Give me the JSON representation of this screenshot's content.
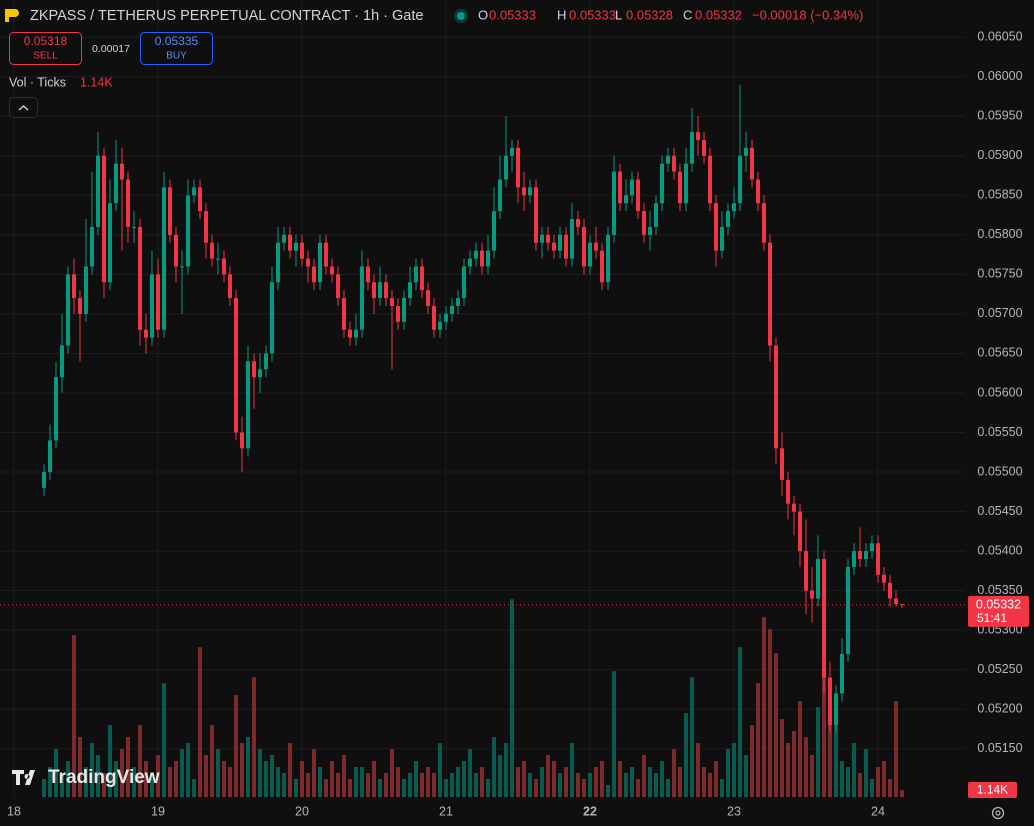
{
  "header": {
    "symbol": "ZKPASS / TETHERUS PERPETUAL CONTRACT · 1h · Gate",
    "ohlc": [
      {
        "label": "O",
        "value": "0.05333"
      },
      {
        "label": "H",
        "value": "0.05333"
      },
      {
        "label": "L",
        "value": "0.05328"
      },
      {
        "label": "C",
        "value": "0.05332"
      }
    ],
    "change": "−0.00018 (−0.34%)",
    "sell_price": "0.05318",
    "sell_label": "SELL",
    "spread": "0.00017",
    "buy_price": "0.05335",
    "buy_label": "BUY",
    "countdown": "51:41",
    "watermark": "TradingView"
  },
  "chart_data": {
    "type": "candlestick",
    "up_color": "#089981",
    "down_color": "#f23645",
    "volume_up_color": "#0b5a50",
    "volume_down_color": "#7d2a2c",
    "grid": true,
    "volume_name": "Vol · Ticks",
    "volume_last_label": "1.14K",
    "x": [
      5,
      6,
      7,
      8,
      9,
      10,
      11,
      12,
      13,
      14,
      15,
      16,
      17,
      18,
      19,
      20,
      21,
      22,
      23,
      24,
      25,
      26,
      27,
      28,
      29,
      30,
      31,
      32,
      33,
      34,
      35,
      36,
      37,
      38,
      39,
      40,
      41,
      42,
      43,
      44,
      45,
      46,
      47,
      48,
      49,
      50,
      51,
      52,
      53,
      54,
      55,
      56,
      57,
      58,
      59,
      60,
      61,
      62,
      63,
      64,
      65,
      66,
      67,
      68,
      69,
      70,
      71,
      72,
      73,
      74,
      75,
      76,
      77,
      78,
      79,
      80,
      81,
      82,
      83,
      84,
      85,
      86,
      87,
      88,
      89,
      90,
      91,
      92,
      93,
      94,
      95,
      96,
      97,
      98,
      99,
      100,
      101,
      102,
      103,
      104,
      105,
      106,
      107,
      108,
      109,
      110,
      111,
      112,
      113,
      114,
      115,
      116,
      117,
      118,
      119,
      120,
      121,
      122,
      123,
      124,
      125,
      126,
      127,
      128,
      129,
      130,
      131,
      132,
      133,
      134,
      135,
      136,
      137,
      138,
      139,
      140,
      141,
      142,
      143,
      144,
      145,
      146,
      147,
      148
    ],
    "open": [
      0.0548,
      0.055,
      0.0554,
      0.0562,
      0.0566,
      0.0575,
      0.0572,
      0.057,
      0.0576,
      0.0581,
      0.059,
      0.0574,
      0.0584,
      0.0589,
      0.0587,
      0.0581,
      0.0581,
      0.0568,
      0.0567,
      0.0575,
      0.0568,
      0.0586,
      0.058,
      0.0576,
      0.0576,
      0.0585,
      0.0586,
      0.0583,
      0.0579,
      0.0577,
      0.0577,
      0.0575,
      0.0572,
      0.0555,
      0.0553,
      0.0564,
      0.0562,
      0.0563,
      0.0565,
      0.0574,
      0.0579,
      0.058,
      0.0578,
      0.0579,
      0.0577,
      0.0576,
      0.0574,
      0.0579,
      0.0576,
      0.0575,
      0.0572,
      0.0568,
      0.0567,
      0.0568,
      0.0576,
      0.0574,
      0.0572,
      0.0574,
      0.0572,
      0.0571,
      0.0569,
      0.0572,
      0.0574,
      0.0576,
      0.0573,
      0.0571,
      0.0568,
      0.0569,
      0.057,
      0.0571,
      0.0572,
      0.0576,
      0.0577,
      0.0578,
      0.0576,
      0.0578,
      0.0583,
      0.0587,
      0.059,
      0.0591,
      0.0586,
      0.0585,
      0.0586,
      0.0579,
      0.058,
      0.0579,
      0.0578,
      0.058,
      0.0577,
      0.0582,
      0.0581,
      0.0576,
      0.0579,
      0.0578,
      0.0574,
      0.058,
      0.0588,
      0.0584,
      0.0585,
      0.0587,
      0.0583,
      0.058,
      0.0581,
      0.0584,
      0.0589,
      0.059,
      0.0588,
      0.0584,
      0.0589,
      0.0593,
      0.0592,
      0.059,
      0.0584,
      0.0578,
      0.0581,
      0.0583,
      0.0584,
      0.059,
      0.0591,
      0.0587,
      0.0584,
      0.0579,
      0.0566,
      0.0553,
      0.0549,
      0.0546,
      0.0545,
      0.054,
      0.0535,
      0.0534,
      0.0539,
      0.0524,
      0.0518,
      0.0522,
      0.0527,
      0.0538,
      0.054,
      0.0539,
      0.054,
      0.0541,
      0.0537,
      0.0536,
      0.0534,
      0.05333
    ],
    "high": [
      0.0551,
      0.0556,
      0.0564,
      0.057,
      0.0576,
      0.0577,
      0.0573,
      0.0582,
      0.0588,
      0.0593,
      0.0591,
      0.0587,
      0.0592,
      0.0591,
      0.0588,
      0.0583,
      0.0582,
      0.057,
      0.0578,
      0.0577,
      0.0588,
      0.0587,
      0.0581,
      0.0578,
      0.0587,
      0.0587,
      0.0587,
      0.0584,
      0.058,
      0.0579,
      0.0578,
      0.0576,
      0.0573,
      0.0557,
      0.0566,
      0.0565,
      0.0565,
      0.0566,
      0.0576,
      0.0581,
      0.0581,
      0.0581,
      0.058,
      0.058,
      0.0578,
      0.0577,
      0.058,
      0.058,
      0.0577,
      0.0576,
      0.0573,
      0.0569,
      0.057,
      0.0578,
      0.0577,
      0.0575,
      0.0576,
      0.0575,
      0.0573,
      0.0572,
      0.0573,
      0.0576,
      0.0577,
      0.0577,
      0.0574,
      0.0572,
      0.057,
      0.0571,
      0.0572,
      0.0573,
      0.0577,
      0.0578,
      0.0579,
      0.0579,
      0.058,
      0.0586,
      0.059,
      0.0595,
      0.0592,
      0.0592,
      0.0588,
      0.0587,
      0.0587,
      0.0581,
      0.0581,
      0.058,
      0.0581,
      0.0581,
      0.0584,
      0.0583,
      0.0582,
      0.058,
      0.0581,
      0.0579,
      0.0581,
      0.059,
      0.0589,
      0.0587,
      0.0588,
      0.0588,
      0.0584,
      0.0583,
      0.0585,
      0.059,
      0.0591,
      0.0591,
      0.0589,
      0.0591,
      0.0596,
      0.0595,
      0.0593,
      0.0591,
      0.0585,
      0.0583,
      0.0584,
      0.0586,
      0.0599,
      0.0593,
      0.0592,
      0.0588,
      0.0585,
      0.058,
      0.0567,
      0.0555,
      0.055,
      0.0547,
      0.0546,
      0.0544,
      0.0538,
      0.0542,
      0.054,
      0.0526,
      0.0523,
      0.0529,
      0.0539,
      0.0541,
      0.0543,
      0.0541,
      0.0542,
      0.0542,
      0.0538,
      0.0537,
      0.0535,
      0.05333
    ],
    "low": [
      0.0547,
      0.0549,
      0.0553,
      0.056,
      0.0565,
      0.057,
      0.0564,
      0.0569,
      0.0575,
      0.058,
      0.0572,
      0.0573,
      0.0583,
      0.0578,
      0.0579,
      0.0579,
      0.0566,
      0.0565,
      0.0566,
      0.0567,
      0.0567,
      0.0579,
      0.0574,
      0.057,
      0.0575,
      0.0584,
      0.0582,
      0.0577,
      0.0576,
      0.0575,
      0.0574,
      0.0571,
      0.0554,
      0.055,
      0.0552,
      0.0558,
      0.056,
      0.0562,
      0.0564,
      0.0573,
      0.0578,
      0.0577,
      0.0576,
      0.0576,
      0.0574,
      0.0573,
      0.0573,
      0.0575,
      0.0574,
      0.0571,
      0.0567,
      0.0566,
      0.0566,
      0.0567,
      0.0573,
      0.057,
      0.0571,
      0.0571,
      0.0563,
      0.0568,
      0.0568,
      0.0571,
      0.0573,
      0.0572,
      0.057,
      0.0567,
      0.0567,
      0.0568,
      0.0569,
      0.057,
      0.0571,
      0.0575,
      0.0576,
      0.0575,
      0.0575,
      0.0577,
      0.0582,
      0.0586,
      0.0588,
      0.0584,
      0.0583,
      0.0584,
      0.0578,
      0.0577,
      0.0578,
      0.0577,
      0.0577,
      0.0576,
      0.0576,
      0.058,
      0.0575,
      0.0575,
      0.0577,
      0.0573,
      0.0573,
      0.0579,
      0.0583,
      0.0583,
      0.0584,
      0.0582,
      0.0579,
      0.0578,
      0.058,
      0.0583,
      0.0588,
      0.0587,
      0.0583,
      0.0583,
      0.0588,
      0.059,
      0.0589,
      0.0583,
      0.0576,
      0.0577,
      0.058,
      0.0582,
      0.0583,
      0.0588,
      0.0586,
      0.0583,
      0.0578,
      0.0564,
      0.0551,
      0.0547,
      0.0544,
      0.0542,
      0.0538,
      0.0532,
      0.0531,
      0.0533,
      0.0522,
      0.0517,
      0.0517,
      0.0521,
      0.0526,
      0.0537,
      0.0538,
      0.0538,
      0.0539,
      0.0536,
      0.0535,
      0.0533,
      0.0533,
      0.05328
    ],
    "close": [
      0.055,
      0.0554,
      0.0562,
      0.0566,
      0.0575,
      0.0572,
      0.057,
      0.0576,
      0.0581,
      0.059,
      0.0574,
      0.0584,
      0.0589,
      0.0587,
      0.0581,
      0.0581,
      0.0568,
      0.0567,
      0.0575,
      0.0568,
      0.0586,
      0.058,
      0.0576,
      0.0576,
      0.0585,
      0.0586,
      0.0583,
      0.0579,
      0.0577,
      0.0577,
      0.0575,
      0.0572,
      0.0555,
      0.0553,
      0.0564,
      0.0562,
      0.0563,
      0.0565,
      0.0574,
      0.0579,
      0.058,
      0.0578,
      0.0579,
      0.0577,
      0.0576,
      0.0574,
      0.0579,
      0.0576,
      0.0575,
      0.0572,
      0.0568,
      0.0567,
      0.0568,
      0.0576,
      0.0574,
      0.0572,
      0.0574,
      0.0572,
      0.0571,
      0.0569,
      0.0572,
      0.0574,
      0.0576,
      0.0573,
      0.0571,
      0.0568,
      0.0569,
      0.057,
      0.0571,
      0.0572,
      0.0576,
      0.0577,
      0.0578,
      0.0576,
      0.0578,
      0.0583,
      0.0587,
      0.059,
      0.0591,
      0.0586,
      0.0585,
      0.0586,
      0.0579,
      0.058,
      0.0579,
      0.0578,
      0.058,
      0.0577,
      0.0582,
      0.0581,
      0.0576,
      0.0579,
      0.0578,
      0.0574,
      0.058,
      0.0588,
      0.0584,
      0.0585,
      0.0587,
      0.0583,
      0.058,
      0.0581,
      0.0584,
      0.0589,
      0.059,
      0.0588,
      0.0584,
      0.0589,
      0.0593,
      0.0592,
      0.059,
      0.0584,
      0.0578,
      0.0581,
      0.0583,
      0.0584,
      0.059,
      0.0591,
      0.0587,
      0.0584,
      0.0579,
      0.0566,
      0.0553,
      0.0549,
      0.0546,
      0.0545,
      0.054,
      0.0535,
      0.0534,
      0.0539,
      0.0524,
      0.0518,
      0.0522,
      0.0527,
      0.0538,
      0.054,
      0.0539,
      0.054,
      0.0541,
      0.0537,
      0.0536,
      0.0534,
      0.05333,
      0.05332
    ],
    "volume": [
      3,
      5,
      8,
      4,
      6,
      27,
      10,
      5,
      9,
      7,
      4,
      12,
      6,
      8,
      10,
      5,
      12,
      6,
      4,
      7,
      19,
      5,
      6,
      8,
      9,
      3,
      25,
      7,
      12,
      8,
      6,
      5,
      17,
      9,
      10,
      20,
      8,
      6,
      7,
      5,
      4,
      9,
      3,
      6,
      4,
      8,
      5,
      3,
      6,
      4,
      7,
      3,
      5,
      5,
      4,
      6,
      3,
      4,
      8,
      5,
      3,
      4,
      6,
      4,
      5,
      4,
      9,
      3,
      4,
      5,
      6,
      8,
      4,
      5,
      3,
      10,
      7,
      9,
      33,
      5,
      6,
      4,
      3,
      5,
      7,
      6,
      4,
      5,
      9,
      4,
      3,
      4,
      5,
      6,
      2,
      21,
      6,
      4,
      5,
      3,
      7,
      5,
      4,
      6,
      3,
      8,
      5,
      14,
      20,
      9,
      5,
      4,
      6,
      3,
      8,
      9,
      25,
      7,
      12,
      19,
      30,
      28,
      24,
      13,
      9,
      11,
      16,
      10,
      7,
      15,
      22,
      19,
      12,
      6,
      5,
      9,
      4,
      8,
      3,
      5,
      6,
      3,
      16,
      1.14
    ],
    "volume_lim": [
      0,
      133
    ],
    "xlim": [
      -2.33,
      158.5
    ],
    "xticks": [
      {
        "value": 0,
        "label": "18"
      },
      {
        "value": 24,
        "label": "19"
      },
      {
        "value": 48,
        "label": "20"
      },
      {
        "value": 72,
        "label": "21"
      },
      {
        "value": 96,
        "label": "22"
      },
      {
        "value": 120,
        "label": "23"
      },
      {
        "value": 144,
        "label": "24"
      }
    ],
    "ylim": [
      0.05089,
      0.06097
    ],
    "yticks": [
      {
        "value": 0.0605,
        "label": "0.06050"
      },
      {
        "value": 0.06,
        "label": "0.06000"
      },
      {
        "value": 0.0595,
        "label": "0.05950"
      },
      {
        "value": 0.059,
        "label": "0.05900"
      },
      {
        "value": 0.0585,
        "label": "0.05850"
      },
      {
        "value": 0.058,
        "label": "0.05800"
      },
      {
        "value": 0.0575,
        "label": "0.05750"
      },
      {
        "value": 0.057,
        "label": "0.05700"
      },
      {
        "value": 0.0565,
        "label": "0.05650"
      },
      {
        "value": 0.056,
        "label": "0.05600"
      },
      {
        "value": 0.0555,
        "label": "0.05550"
      },
      {
        "value": 0.055,
        "label": "0.05500"
      },
      {
        "value": 0.0545,
        "label": "0.05450"
      },
      {
        "value": 0.054,
        "label": "0.05400"
      },
      {
        "value": 0.0535,
        "label": "0.05350"
      },
      {
        "value": 0.053,
        "label": "0.05300"
      },
      {
        "value": 0.0525,
        "label": "0.05250"
      },
      {
        "value": 0.052,
        "label": "0.05200"
      },
      {
        "value": 0.0515,
        "label": "0.05150"
      }
    ]
  }
}
